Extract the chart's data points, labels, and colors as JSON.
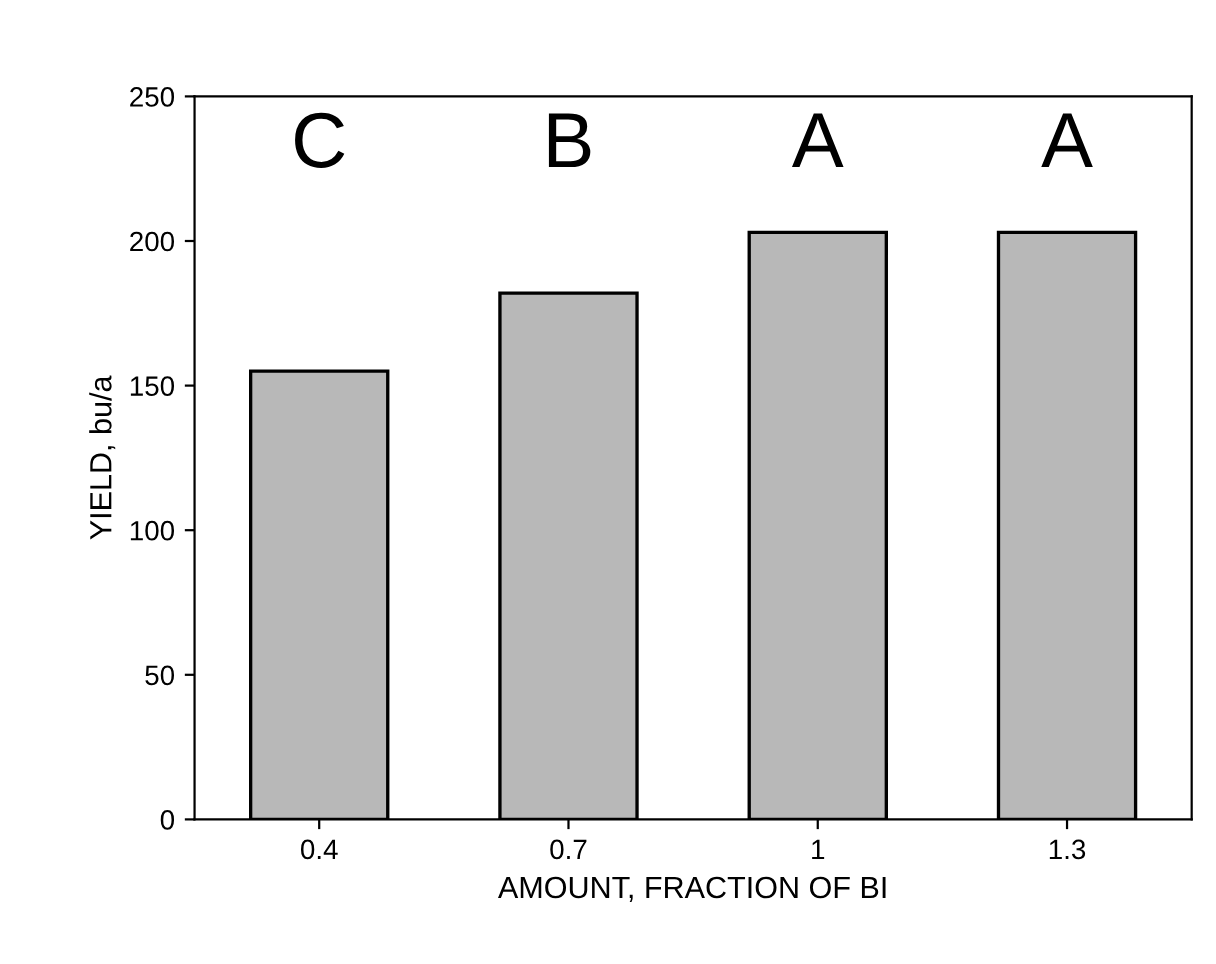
{
  "chart_data": {
    "type": "bar",
    "xlabel": "AMOUNT, FRACTION OF BI",
    "ylabel": "YIELD, bu/a",
    "categories": [
      "0.4",
      "0.7",
      "1",
      "1.3"
    ],
    "values": [
      155,
      182,
      203,
      203
    ],
    "color": "#b8b8b8",
    "ylim": [
      0,
      250
    ],
    "yticks": [
      0,
      50,
      100,
      150,
      200,
      250
    ],
    "annotations": [
      "C",
      "B",
      "A",
      "A"
    ],
    "grid": false,
    "legend": false
  }
}
